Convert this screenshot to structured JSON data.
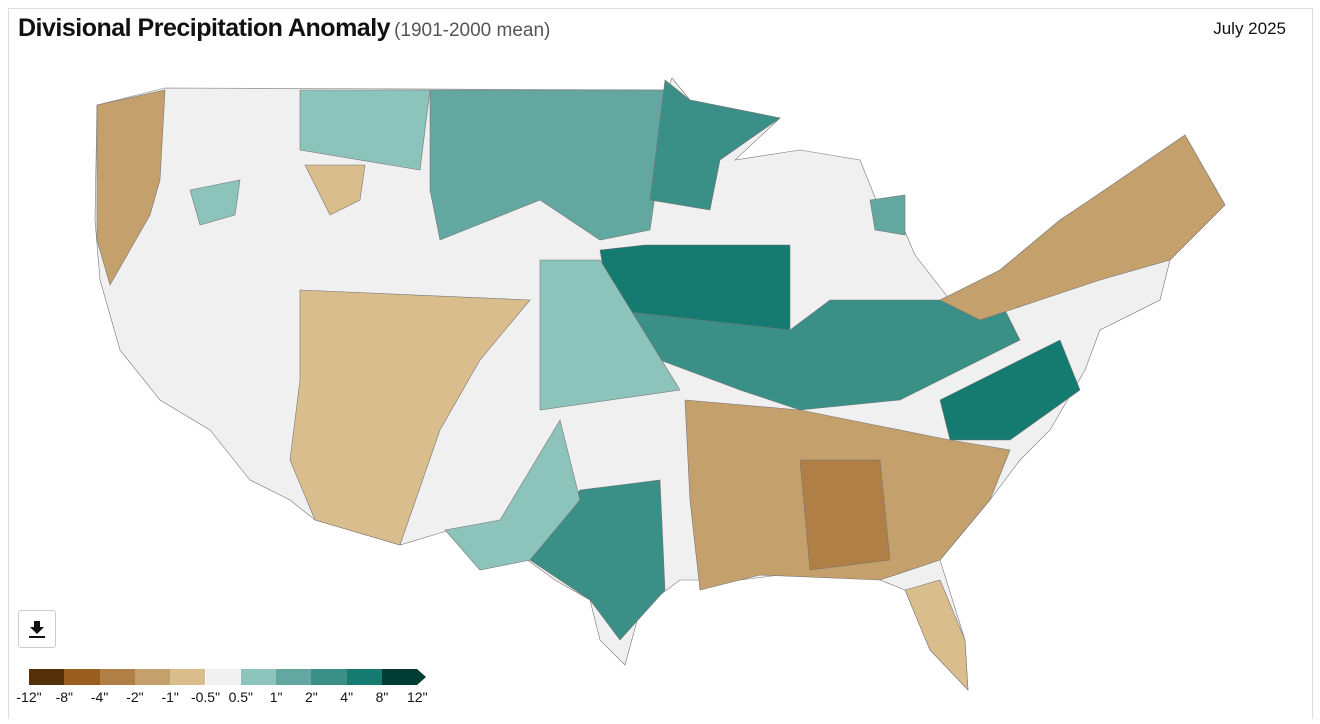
{
  "header": {
    "title": "Divisional Precipitation Anomaly",
    "subtitle": "(1901-2000 mean)",
    "date": "July 2025"
  },
  "download_icon": "download-icon",
  "legend": {
    "colors": [
      "#54300a",
      "#995d1f",
      "#b07f45",
      "#c4a06c",
      "#d9bd8c",
      "#f0f0f0",
      "#8cc4bc",
      "#62a8a0",
      "#3a8f86",
      "#157a70",
      "#013c33"
    ],
    "labels": [
      "-12\"",
      "-8\"",
      "-4\"",
      "-2\"",
      "-1\"",
      "-0.5\"",
      "0.5\"",
      "1\"",
      "2\"",
      "4\"",
      "8\"",
      "12\""
    ]
  }
}
